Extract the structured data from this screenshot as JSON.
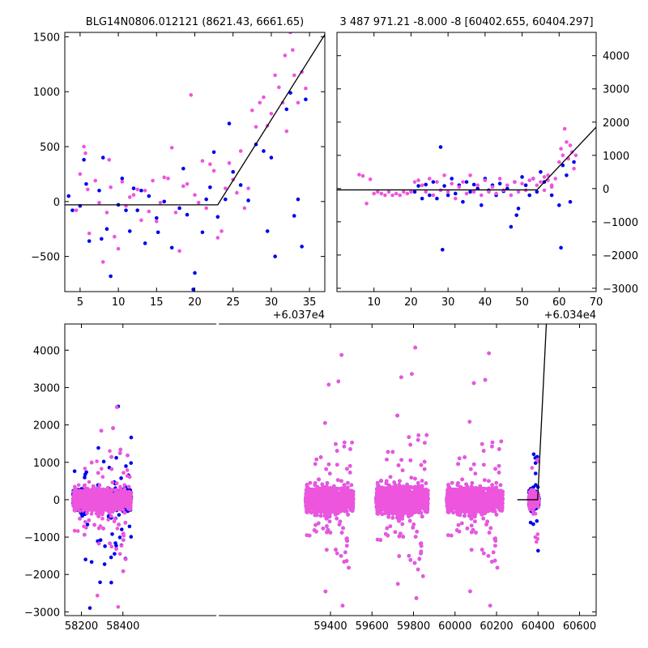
{
  "colors": {
    "blue": "#0000ee",
    "magenta": "#ee55dd",
    "line": "#000000",
    "axis": "#000000"
  },
  "chart_data": [
    {
      "type": "scatter",
      "panel": "top-left",
      "title": "BLG14N0806.012121 (8621.43, 6661.65)",
      "xlim": [
        3,
        37
      ],
      "ylim": [
        -820,
        1540
      ],
      "x_ticks": [
        5,
        10,
        15,
        20,
        25,
        30,
        35
      ],
      "y_ticks": [
        -500,
        0,
        500,
        1000,
        1500
      ],
      "x_offset_label": "+6.037e4",
      "y_axis_side": "left",
      "fit_line": [
        [
          3,
          -30
        ],
        [
          23,
          -30
        ],
        [
          37,
          1520
        ]
      ],
      "series": [
        {
          "color_key": "blue",
          "points": [
            [
              3.5,
              50
            ],
            [
              4,
              -80
            ],
            [
              5,
              -40
            ],
            [
              5.5,
              380
            ],
            [
              5.8,
              160
            ],
            [
              6.2,
              -360
            ],
            [
              7.5,
              100
            ],
            [
              7.8,
              -340
            ],
            [
              8,
              400
            ],
            [
              8.5,
              -250
            ],
            [
              9,
              -680
            ],
            [
              10,
              -30
            ],
            [
              10.5,
              210
            ],
            [
              11,
              -80
            ],
            [
              11.5,
              -270
            ],
            [
              12,
              120
            ],
            [
              12.5,
              -80
            ],
            [
              13,
              100
            ],
            [
              13.5,
              -380
            ],
            [
              14,
              50
            ],
            [
              15,
              -150
            ],
            [
              15.2,
              -280
            ],
            [
              16,
              0
            ],
            [
              17,
              -420
            ],
            [
              18,
              -60
            ],
            [
              18.5,
              300
            ],
            [
              19,
              -120
            ],
            [
              19.8,
              -800
            ],
            [
              20,
              -650
            ],
            [
              21,
              -280
            ],
            [
              21.5,
              20
            ],
            [
              22,
              130
            ],
            [
              22.5,
              450
            ],
            [
              23,
              -140
            ],
            [
              24,
              20
            ],
            [
              24.5,
              710
            ],
            [
              25,
              270
            ],
            [
              26,
              150
            ],
            [
              27,
              10
            ],
            [
              28,
              520
            ],
            [
              29,
              460
            ],
            [
              29.5,
              -270
            ],
            [
              30,
              400
            ],
            [
              30.5,
              -500
            ],
            [
              32,
              840
            ],
            [
              32.5,
              990
            ],
            [
              33,
              -130
            ],
            [
              33.5,
              20
            ],
            [
              34,
              -410
            ],
            [
              34.5,
              930
            ]
          ]
        },
        {
          "color_key": "magenta",
          "points": [
            [
              4.5,
              -80
            ],
            [
              5,
              250
            ],
            [
              5.5,
              500
            ],
            [
              5.7,
              440
            ],
            [
              6,
              110
            ],
            [
              6.2,
              -290
            ],
            [
              7,
              190
            ],
            [
              7.5,
              -10
            ],
            [
              8,
              -550
            ],
            [
              8.5,
              -100
            ],
            [
              8.8,
              380
            ],
            [
              9,
              130
            ],
            [
              9.5,
              -320
            ],
            [
              10,
              -430
            ],
            [
              10.5,
              180
            ],
            [
              11,
              -40
            ],
            [
              11.5,
              40
            ],
            [
              12,
              60
            ],
            [
              12.5,
              110
            ],
            [
              13,
              -170
            ],
            [
              13.5,
              100
            ],
            [
              14,
              -90
            ],
            [
              14.5,
              190
            ],
            [
              15,
              -180
            ],
            [
              15.5,
              -10
            ],
            [
              16,
              220
            ],
            [
              16.5,
              210
            ],
            [
              17,
              490
            ],
            [
              17.5,
              -100
            ],
            [
              18,
              -450
            ],
            [
              18.5,
              140
            ],
            [
              19,
              160
            ],
            [
              19.5,
              970
            ],
            [
              20,
              60
            ],
            [
              20.5,
              -10
            ],
            [
              21,
              370
            ],
            [
              21.5,
              -60
            ],
            [
              22,
              340
            ],
            [
              22.5,
              280
            ],
            [
              23,
              -330
            ],
            [
              23.5,
              -270
            ],
            [
              24,
              120
            ],
            [
              24.5,
              350
            ],
            [
              25,
              200
            ],
            [
              25.5,
              80
            ],
            [
              26,
              460
            ],
            [
              26.5,
              -60
            ],
            [
              27,
              120
            ],
            [
              27.5,
              830
            ],
            [
              28,
              680
            ],
            [
              28.5,
              900
            ],
            [
              29,
              950
            ],
            [
              29.5,
              690
            ],
            [
              30,
              800
            ],
            [
              30.5,
              1150
            ],
            [
              31,
              1040
            ],
            [
              31.5,
              900
            ],
            [
              32,
              640
            ],
            [
              32.5,
              1540
            ],
            [
              33,
              1150
            ],
            [
              33.5,
              900
            ],
            [
              34,
              1180
            ],
            [
              34.5,
              1030
            ],
            [
              32.8,
              1380
            ],
            [
              31.8,
              1330
            ]
          ]
        }
      ]
    },
    {
      "type": "scatter",
      "panel": "top-right",
      "title": "3 487 971.21 -8.000 -8 [60402.655, 60404.297]",
      "xlim": [
        0,
        70
      ],
      "ylim": [
        -3100,
        4700
      ],
      "x_ticks": [
        10,
        20,
        30,
        40,
        50,
        60,
        70
      ],
      "y_ticks": [
        -3000,
        -2000,
        -1000,
        0,
        1000,
        2000,
        3000,
        4000
      ],
      "x_offset_label": "+6.034e4",
      "y_axis_side": "right",
      "fit_line": [
        [
          0,
          -40
        ],
        [
          54,
          -40
        ],
        [
          70,
          1850
        ]
      ],
      "series": [
        {
          "color_key": "blue",
          "points": [
            [
              21,
              -100
            ],
            [
              22,
              80
            ],
            [
              23,
              -300
            ],
            [
              24,
              120
            ],
            [
              25,
              -200
            ],
            [
              26,
              200
            ],
            [
              27,
              -300
            ],
            [
              28,
              1250
            ],
            [
              28.5,
              -1840
            ],
            [
              29,
              80
            ],
            [
              30,
              -200
            ],
            [
              31,
              300
            ],
            [
              32,
              -150
            ],
            [
              33,
              100
            ],
            [
              34,
              -400
            ],
            [
              35,
              200
            ],
            [
              36,
              -100
            ],
            [
              37,
              120
            ],
            [
              38,
              0
            ],
            [
              39,
              -500
            ],
            [
              40,
              300
            ],
            [
              41,
              -50
            ],
            [
              42,
              100
            ],
            [
              43,
              -200
            ],
            [
              44,
              150
            ],
            [
              45,
              -80
            ],
            [
              46,
              0
            ],
            [
              47,
              -1150
            ],
            [
              48,
              200
            ],
            [
              48.5,
              -800
            ],
            [
              49,
              -600
            ],
            [
              50,
              350
            ],
            [
              51,
              100
            ],
            [
              52,
              -200
            ],
            [
              53,
              300
            ],
            [
              54,
              -100
            ],
            [
              55,
              500
            ],
            [
              56,
              200
            ],
            [
              58,
              -200
            ],
            [
              60,
              -500
            ],
            [
              60.5,
              -1780
            ],
            [
              61,
              700
            ],
            [
              62,
              400
            ],
            [
              63,
              -400
            ],
            [
              64,
              800
            ]
          ]
        },
        {
          "color_key": "magenta",
          "points": [
            [
              6,
              420
            ],
            [
              7,
              380
            ],
            [
              8,
              -450
            ],
            [
              9,
              280
            ],
            [
              10,
              -150
            ],
            [
              11,
              -100
            ],
            [
              12,
              -150
            ],
            [
              13,
              -200
            ],
            [
              14,
              -100
            ],
            [
              15,
              -200
            ],
            [
              16,
              -150
            ],
            [
              17,
              -200
            ],
            [
              18,
              -100
            ],
            [
              19,
              -150
            ],
            [
              20,
              -100
            ],
            [
              21,
              200
            ],
            [
              22,
              250
            ],
            [
              23,
              100
            ],
            [
              24,
              -100
            ],
            [
              25,
              300
            ],
            [
              26,
              -200
            ],
            [
              27,
              200
            ],
            [
              28,
              -50
            ],
            [
              29,
              400
            ],
            [
              30,
              -100
            ],
            [
              31,
              150
            ],
            [
              32,
              -300
            ],
            [
              33,
              50
            ],
            [
              34,
              200
            ],
            [
              35,
              -150
            ],
            [
              36,
              400
            ],
            [
              37,
              -100
            ],
            [
              38,
              100
            ],
            [
              39,
              -200
            ],
            [
              40,
              250
            ],
            [
              41,
              -100
            ],
            [
              42,
              50
            ],
            [
              43,
              -150
            ],
            [
              44,
              300
            ],
            [
              45,
              -50
            ],
            [
              46,
              100
            ],
            [
              47,
              -200
            ],
            [
              48,
              200
            ],
            [
              49,
              -100
            ],
            [
              50,
              150
            ],
            [
              51,
              -50
            ],
            [
              52,
              250
            ],
            [
              53,
              300
            ],
            [
              54,
              100
            ],
            [
              55,
              200
            ],
            [
              56,
              -50
            ],
            [
              57,
              250
            ],
            [
              58,
              50
            ],
            [
              59,
              300
            ],
            [
              60,
              800
            ],
            [
              60.5,
              1200
            ],
            [
              61,
              1000
            ],
            [
              61.5,
              1800
            ],
            [
              62,
              1400
            ],
            [
              62.5,
              900
            ],
            [
              63,
              1300
            ],
            [
              63.5,
              1100
            ],
            [
              64,
              600
            ],
            [
              64.5,
              1000
            ],
            [
              58,
              100
            ],
            [
              57,
              400
            ],
            [
              56,
              350
            ]
          ]
        }
      ]
    },
    {
      "type": "scatter",
      "panel": "bottom",
      "xlim": [
        58120,
        60680
      ],
      "ylim": [
        -3100,
        4700
      ],
      "x_ticks": [
        58200,
        58400,
        59400,
        59600,
        59800,
        60000,
        60200,
        60400,
        60600
      ],
      "y_ticks": [
        -3000,
        -2000,
        -1000,
        0,
        1000,
        2000,
        3000,
        4000
      ],
      "x_breaks": [
        [
          58440,
          59280
        ]
      ],
      "seasons": [
        {
          "range": [
            58160,
            58440
          ],
          "spread": 350,
          "outlier_max": 2900,
          "outlier_min": -3000
        },
        {
          "range": [
            59280,
            59510
          ],
          "spread": 400,
          "outlier_max": 4400,
          "outlier_min": -3000
        },
        {
          "range": [
            59620,
            59870
          ],
          "spread": 450,
          "outlier_max": 4600,
          "outlier_min": -2800
        },
        {
          "range": [
            59960,
            60230
          ],
          "spread": 400,
          "outlier_max": 4450,
          "outlier_min": -3000
        },
        {
          "range": [
            60355,
            60405
          ],
          "spread": 300,
          "outlier_max": 1850,
          "outlier_min": -1700
        }
      ],
      "fit_line": [
        [
          60300,
          0
        ],
        [
          60398,
          0
        ],
        [
          60440,
          4700
        ]
      ]
    }
  ]
}
